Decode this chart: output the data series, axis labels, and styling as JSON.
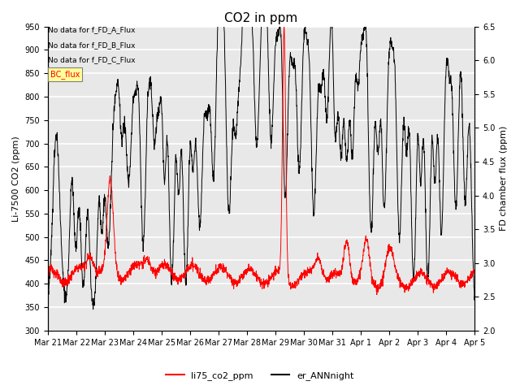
{
  "title": "CO2 in ppm",
  "ylabel_left": "Li-7500 CO2 (ppm)",
  "ylabel_right": "FD chamber flux (ppm)",
  "ylim_left": [
    300,
    950
  ],
  "ylim_right": [
    2.0,
    6.5
  ],
  "yticks_left": [
    300,
    350,
    400,
    450,
    500,
    550,
    600,
    650,
    700,
    750,
    800,
    850,
    900,
    950
  ],
  "yticks_right": [
    2.0,
    2.5,
    3.0,
    3.5,
    4.0,
    4.5,
    5.0,
    5.5,
    6.0,
    6.5
  ],
  "no_data_texts": [
    "No data for f_FD_A_Flux",
    "No data for f_FD_B_Flux",
    "No data for f_FD_C_Flux"
  ],
  "legend_box_text": "BC_flux",
  "legend_box_color": "#ffff99",
  "legend_box_text_color": "red",
  "line1_color": "red",
  "line1_label": "li75_co2_ppm",
  "line2_color": "black",
  "line2_label": "er_ANNnight",
  "background_color": "#e8e8e8",
  "grid_color": "white",
  "title_fontsize": 11,
  "axis_label_fontsize": 8,
  "tick_fontsize": 7,
  "figsize": [
    6.4,
    4.8
  ],
  "dpi": 100
}
